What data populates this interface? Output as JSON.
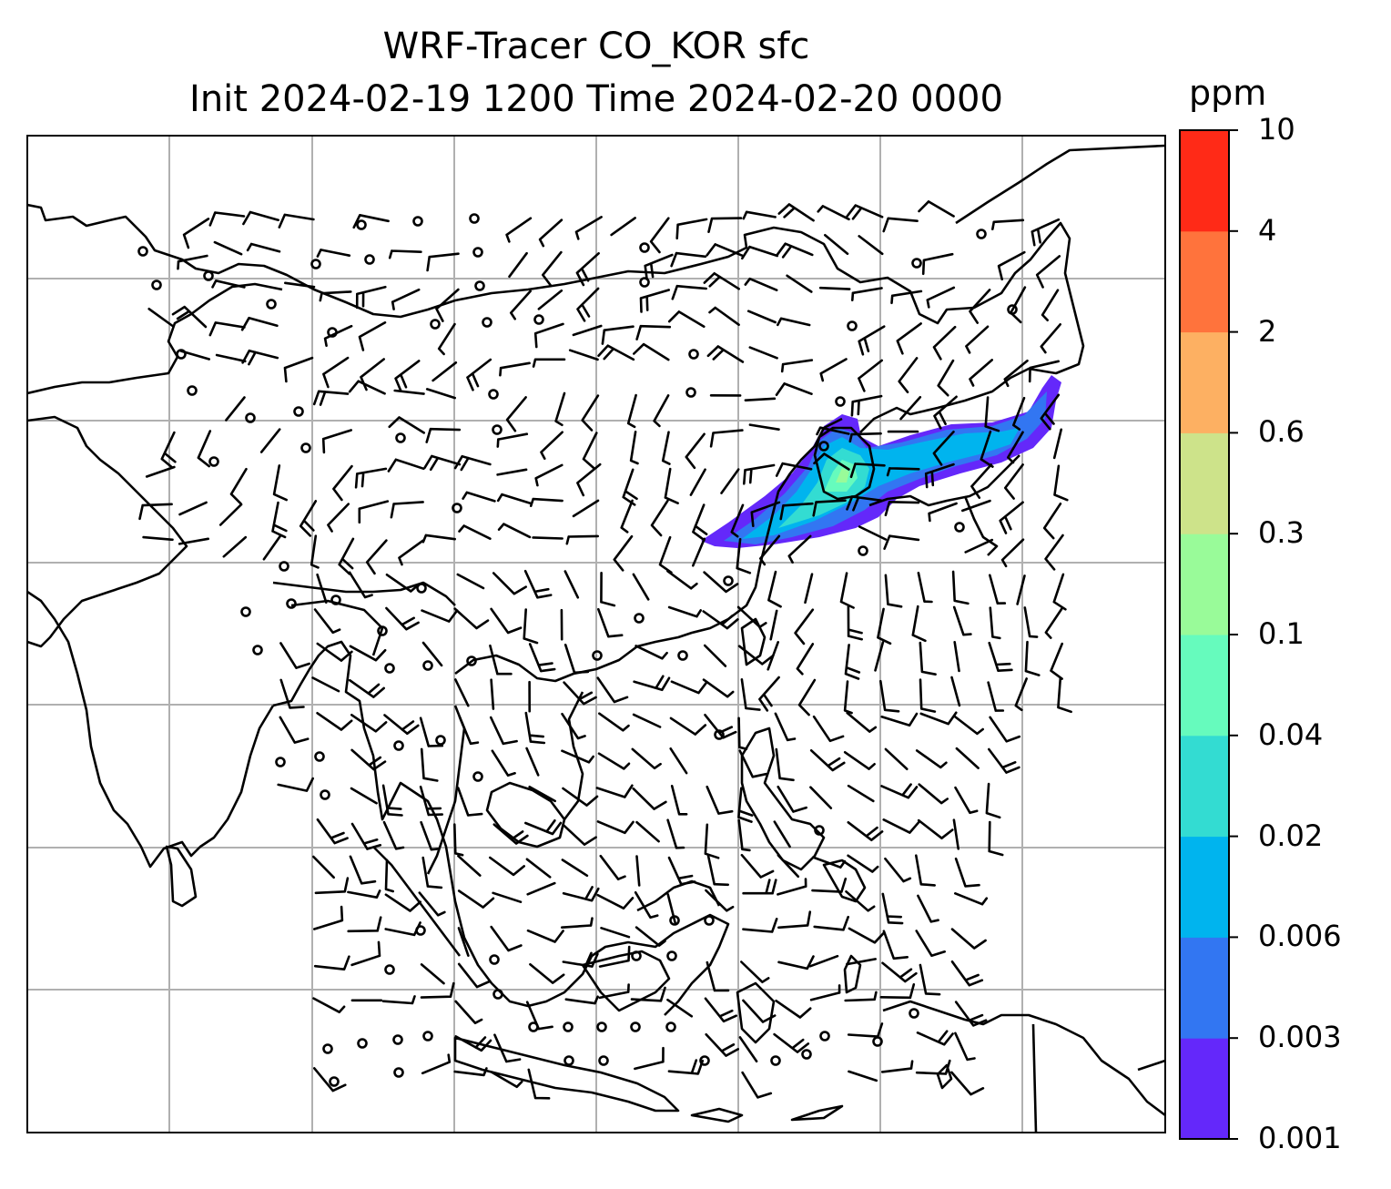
{
  "title": {
    "line1": "WRF-Tracer CO_KOR sfc",
    "line2": "Init 2024-02-19 1200 Time 2024-02-20 0000"
  },
  "colorbar": {
    "unit": "ppm",
    "levels": [
      "0.001",
      "0.003",
      "0.006",
      "0.02",
      "0.04",
      "0.1",
      "0.3",
      "0.6",
      "2",
      "4",
      "10"
    ],
    "colors": [
      "#6428fa",
      "#3276f2",
      "#00b4ee",
      "#33dcd2",
      "#66fbbd",
      "#99fb99",
      "#cde38a",
      "#fdb062",
      "#ff733c",
      "#ff2a17"
    ]
  },
  "map": {
    "field": "CO_KOR",
    "level": "sfc",
    "gridlines": true,
    "plume_color_min": "#6428fa",
    "plume_color_mid": "#33dcd2",
    "plume_color_max": "#99fb99"
  }
}
